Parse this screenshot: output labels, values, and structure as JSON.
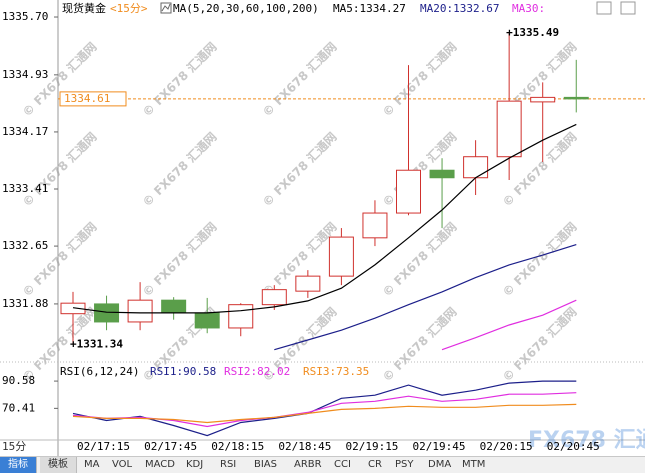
{
  "chart_data": [
    {
      "type": "candlestick",
      "title": "现货黄金",
      "subtitle": "<15分>",
      "indicator": "MA(5,20,30,60,100,200)",
      "categories": [
        null,
        "02/17:15",
        null,
        "02/17:45",
        null,
        "02/18:15",
        null,
        "02/18:45",
        null,
        "02/19:15",
        null,
        "02/19:45",
        null,
        "02/20:15",
        null,
        "02/20:45"
      ],
      "open": [
        1331.75,
        1331.88,
        1331.64,
        1331.93,
        1331.76,
        1331.56,
        1331.87,
        1332.05,
        1332.25,
        1332.76,
        1333.09,
        1333.66,
        1333.56,
        1333.84,
        1334.57,
        1334.63
      ],
      "high": [
        1332.04,
        1331.99,
        1332.17,
        1331.97,
        1331.96,
        1331.89,
        1332.13,
        1332.33,
        1332.89,
        1333.26,
        1335.06,
        1333.82,
        1334.06,
        1335.49,
        1334.83,
        1335.13
      ],
      "low": [
        1331.34,
        1331.53,
        1331.53,
        1331.67,
        1331.49,
        1331.45,
        1331.8,
        1331.96,
        1332.13,
        1332.65,
        1333.06,
        1332.89,
        1333.33,
        1333.53,
        1333.77,
        1334.43
      ],
      "close": [
        1331.89,
        1331.64,
        1331.93,
        1331.76,
        1331.56,
        1331.87,
        1332.07,
        1332.25,
        1332.77,
        1333.09,
        1333.66,
        1333.56,
        1333.84,
        1334.58,
        1334.63,
        1334.61
      ],
      "up_color": "#d0312d",
      "down_color": "#5a9e4a",
      "series": [
        {
          "name": "MA5:1334.27",
          "color": "#000000",
          "values": [
            1331.83,
            1331.77,
            1331.76,
            1331.76,
            1331.76,
            1331.79,
            1331.84,
            1331.92,
            1332.09,
            1332.4,
            1332.76,
            1333.13,
            1333.56,
            1333.82,
            1334.06,
            1334.27
          ]
        },
        {
          "name": "MA20:1332.67",
          "color": "#1c1f8a",
          "values": [
            null,
            null,
            null,
            null,
            null,
            null,
            1331.27,
            1331.4,
            1331.53,
            1331.69,
            1331.87,
            1332.04,
            1332.23,
            1332.4,
            1332.53,
            1332.67
          ]
        },
        {
          "name": "MA30:",
          "color": "#e02ee0",
          "values": [
            null,
            null,
            null,
            null,
            null,
            null,
            null,
            null,
            null,
            null,
            null,
            1331.27,
            1331.43,
            1331.6,
            1331.73,
            1331.93
          ]
        }
      ],
      "annotations": [
        {
          "value": 1335.49,
          "label": "+1335.49"
        },
        {
          "value": 1331.34,
          "label": "+1331.34"
        }
      ],
      "last_price": 1334.61,
      "last_price_color": "#f08c1e",
      "ylim": [
        1331.16,
        1335.86
      ],
      "yticks": [
        1331.88,
        1332.65,
        1333.41,
        1334.17,
        1334.93,
        {
          "value": 1335.7,
          "label": "1335.70"
        }
      ]
    },
    {
      "type": "line",
      "indicator": "RSI(6,12,24)",
      "series": [
        {
          "name": "RSI1:90.58",
          "color": "#1c1f8a",
          "values": [
            66.68,
            61.45,
            64.44,
            57.72,
            50.25,
            59.96,
            62.95,
            66.68,
            77.88,
            80.12,
            87.59,
            80.12,
            83.86,
            89.09,
            90.58,
            90.58
          ]
        },
        {
          "name": "RSI2:82.02",
          "color": "#e02ee0",
          "values": [
            65.19,
            62.95,
            63.69,
            61.45,
            56.97,
            61.45,
            63.69,
            67.43,
            74.15,
            75.64,
            79.38,
            75.64,
            77.14,
            80.87,
            80.87,
            82.02
          ]
        },
        {
          "name": "RSI3:73.35",
          "color": "#f08c1e",
          "values": [
            64.44,
            62.95,
            62.95,
            62.2,
            59.96,
            62.2,
            63.69,
            66.68,
            69.67,
            70.41,
            71.91,
            71.16,
            71.16,
            72.66,
            72.66,
            73.35
          ]
        }
      ],
      "ylim": [
        47,
        97.3
      ],
      "yticks": [
        70.41,
        90.58
      ]
    }
  ],
  "period": "15分",
  "watermark": "© FX678 汇通网",
  "brand": "FX678 汇通网",
  "toolbar": {
    "items": [
      "指标",
      "模板",
      "MA",
      "VOL",
      "MACD",
      "KDJ",
      "RSI",
      "BIAS",
      "ARBR",
      "CCI",
      "CR",
      "PSY",
      "DMA",
      "MTM"
    ]
  }
}
